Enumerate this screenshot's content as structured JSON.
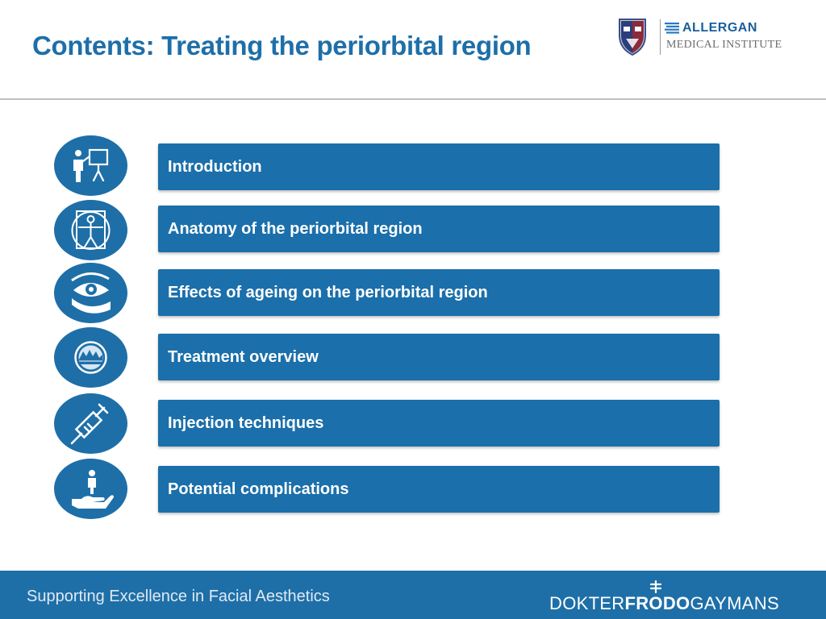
{
  "header": {
    "title": "Contents: Treating the periorbital region",
    "logo": {
      "line1": "ALLERGAN",
      "line2": "MEDICAL INSTITUTE"
    }
  },
  "contents": [
    {
      "label": "Introduction",
      "icon": "presenter-icon"
    },
    {
      "label": "Anatomy of the periorbital region",
      "icon": "vitruvian-man-icon"
    },
    {
      "label": "Effects of ageing on the periorbital region",
      "icon": "eye-icon"
    },
    {
      "label": "Treatment overview",
      "icon": "skin-layers-icon"
    },
    {
      "label": "Injection techniques",
      "icon": "syringe-icon"
    },
    {
      "label": "Potential complications",
      "icon": "hand-care-icon"
    }
  ],
  "footer": {
    "tagline": "Supporting Excellence in Facial Aesthetics",
    "brand_part1": "DOKTER",
    "brand_part2": "FRODO",
    "brand_part3": "GAYMANS"
  },
  "colors": {
    "primary": "#1e6fa8",
    "bar": "#1b6faa",
    "rule": "#bfbfbf"
  }
}
